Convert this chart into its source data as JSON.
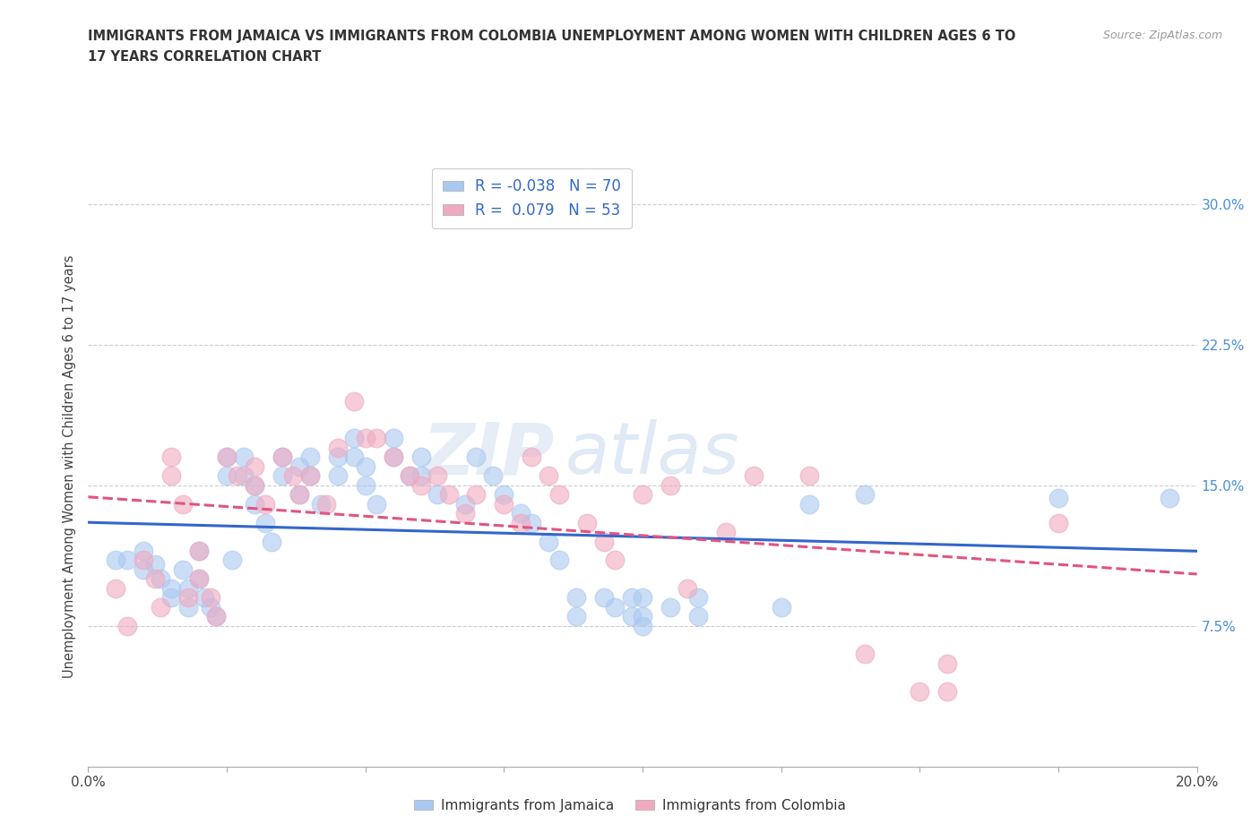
{
  "title": "IMMIGRANTS FROM JAMAICA VS IMMIGRANTS FROM COLOMBIA UNEMPLOYMENT AMONG WOMEN WITH CHILDREN AGES 6 TO\n17 YEARS CORRELATION CHART",
  "source": "Source: ZipAtlas.com",
  "ylabel": "Unemployment Among Women with Children Ages 6 to 17 years",
  "xlim": [
    0.0,
    0.2
  ],
  "ylim": [
    0.0,
    0.32
  ],
  "xticks": [
    0.0,
    0.025,
    0.05,
    0.075,
    0.1,
    0.125,
    0.15,
    0.175,
    0.2
  ],
  "xticklabels": [
    "0.0%",
    "",
    "",
    "",
    "",
    "",
    "",
    "",
    "20.0%"
  ],
  "yticks": [
    0.0,
    0.075,
    0.15,
    0.225,
    0.3
  ],
  "yticklabels": [
    "",
    "7.5%",
    "15.0%",
    "22.5%",
    "30.0%"
  ],
  "grid_color": "#cccccc",
  "background_color": "#ffffff",
  "jamaica_color": "#aac9f0",
  "colombia_color": "#f0aac0",
  "jamaica_line_color": "#3366cc",
  "colombia_line_color": "#e05580",
  "jamaica_R": -0.038,
  "jamaica_N": 70,
  "colombia_R": 0.079,
  "colombia_N": 53,
  "legend_label_jamaica": "Immigrants from Jamaica",
  "legend_label_colombia": "Immigrants from Colombia",
  "watermark_zip": "ZIP",
  "watermark_atlas": "atlas",
  "jamaica_scatter_x": [
    0.005,
    0.007,
    0.01,
    0.01,
    0.012,
    0.013,
    0.015,
    0.015,
    0.017,
    0.018,
    0.018,
    0.02,
    0.02,
    0.021,
    0.022,
    0.023,
    0.025,
    0.025,
    0.026,
    0.028,
    0.028,
    0.03,
    0.03,
    0.032,
    0.033,
    0.035,
    0.035,
    0.038,
    0.038,
    0.04,
    0.04,
    0.042,
    0.045,
    0.045,
    0.048,
    0.048,
    0.05,
    0.05,
    0.052,
    0.055,
    0.055,
    0.058,
    0.06,
    0.06,
    0.063,
    0.068,
    0.07,
    0.073,
    0.075,
    0.078,
    0.08,
    0.083,
    0.085,
    0.088,
    0.088,
    0.093,
    0.095,
    0.098,
    0.098,
    0.1,
    0.1,
    0.1,
    0.105,
    0.11,
    0.11,
    0.125,
    0.13,
    0.14,
    0.175,
    0.195
  ],
  "jamaica_scatter_y": [
    0.11,
    0.11,
    0.115,
    0.105,
    0.108,
    0.1,
    0.095,
    0.09,
    0.105,
    0.095,
    0.085,
    0.115,
    0.1,
    0.09,
    0.085,
    0.08,
    0.165,
    0.155,
    0.11,
    0.165,
    0.155,
    0.15,
    0.14,
    0.13,
    0.12,
    0.165,
    0.155,
    0.16,
    0.145,
    0.165,
    0.155,
    0.14,
    0.165,
    0.155,
    0.175,
    0.165,
    0.16,
    0.15,
    0.14,
    0.175,
    0.165,
    0.155,
    0.165,
    0.155,
    0.145,
    0.14,
    0.165,
    0.155,
    0.145,
    0.135,
    0.13,
    0.12,
    0.11,
    0.09,
    0.08,
    0.09,
    0.085,
    0.09,
    0.08,
    0.09,
    0.08,
    0.075,
    0.085,
    0.09,
    0.08,
    0.085,
    0.14,
    0.145,
    0.143,
    0.143
  ],
  "colombia_scatter_x": [
    0.005,
    0.007,
    0.01,
    0.012,
    0.013,
    0.015,
    0.015,
    0.017,
    0.018,
    0.02,
    0.02,
    0.022,
    0.023,
    0.025,
    0.027,
    0.03,
    0.03,
    0.032,
    0.035,
    0.037,
    0.038,
    0.04,
    0.043,
    0.045,
    0.048,
    0.05,
    0.052,
    0.055,
    0.058,
    0.06,
    0.063,
    0.065,
    0.068,
    0.07,
    0.075,
    0.078,
    0.08,
    0.083,
    0.085,
    0.09,
    0.093,
    0.095,
    0.1,
    0.105,
    0.108,
    0.115,
    0.12,
    0.13,
    0.14,
    0.15,
    0.155,
    0.155,
    0.175
  ],
  "colombia_scatter_y": [
    0.095,
    0.075,
    0.11,
    0.1,
    0.085,
    0.165,
    0.155,
    0.14,
    0.09,
    0.115,
    0.1,
    0.09,
    0.08,
    0.165,
    0.155,
    0.16,
    0.15,
    0.14,
    0.165,
    0.155,
    0.145,
    0.155,
    0.14,
    0.17,
    0.195,
    0.175,
    0.175,
    0.165,
    0.155,
    0.15,
    0.155,
    0.145,
    0.135,
    0.145,
    0.14,
    0.13,
    0.165,
    0.155,
    0.145,
    0.13,
    0.12,
    0.11,
    0.145,
    0.15,
    0.095,
    0.125,
    0.155,
    0.155,
    0.06,
    0.04,
    0.055,
    0.04,
    0.13
  ]
}
